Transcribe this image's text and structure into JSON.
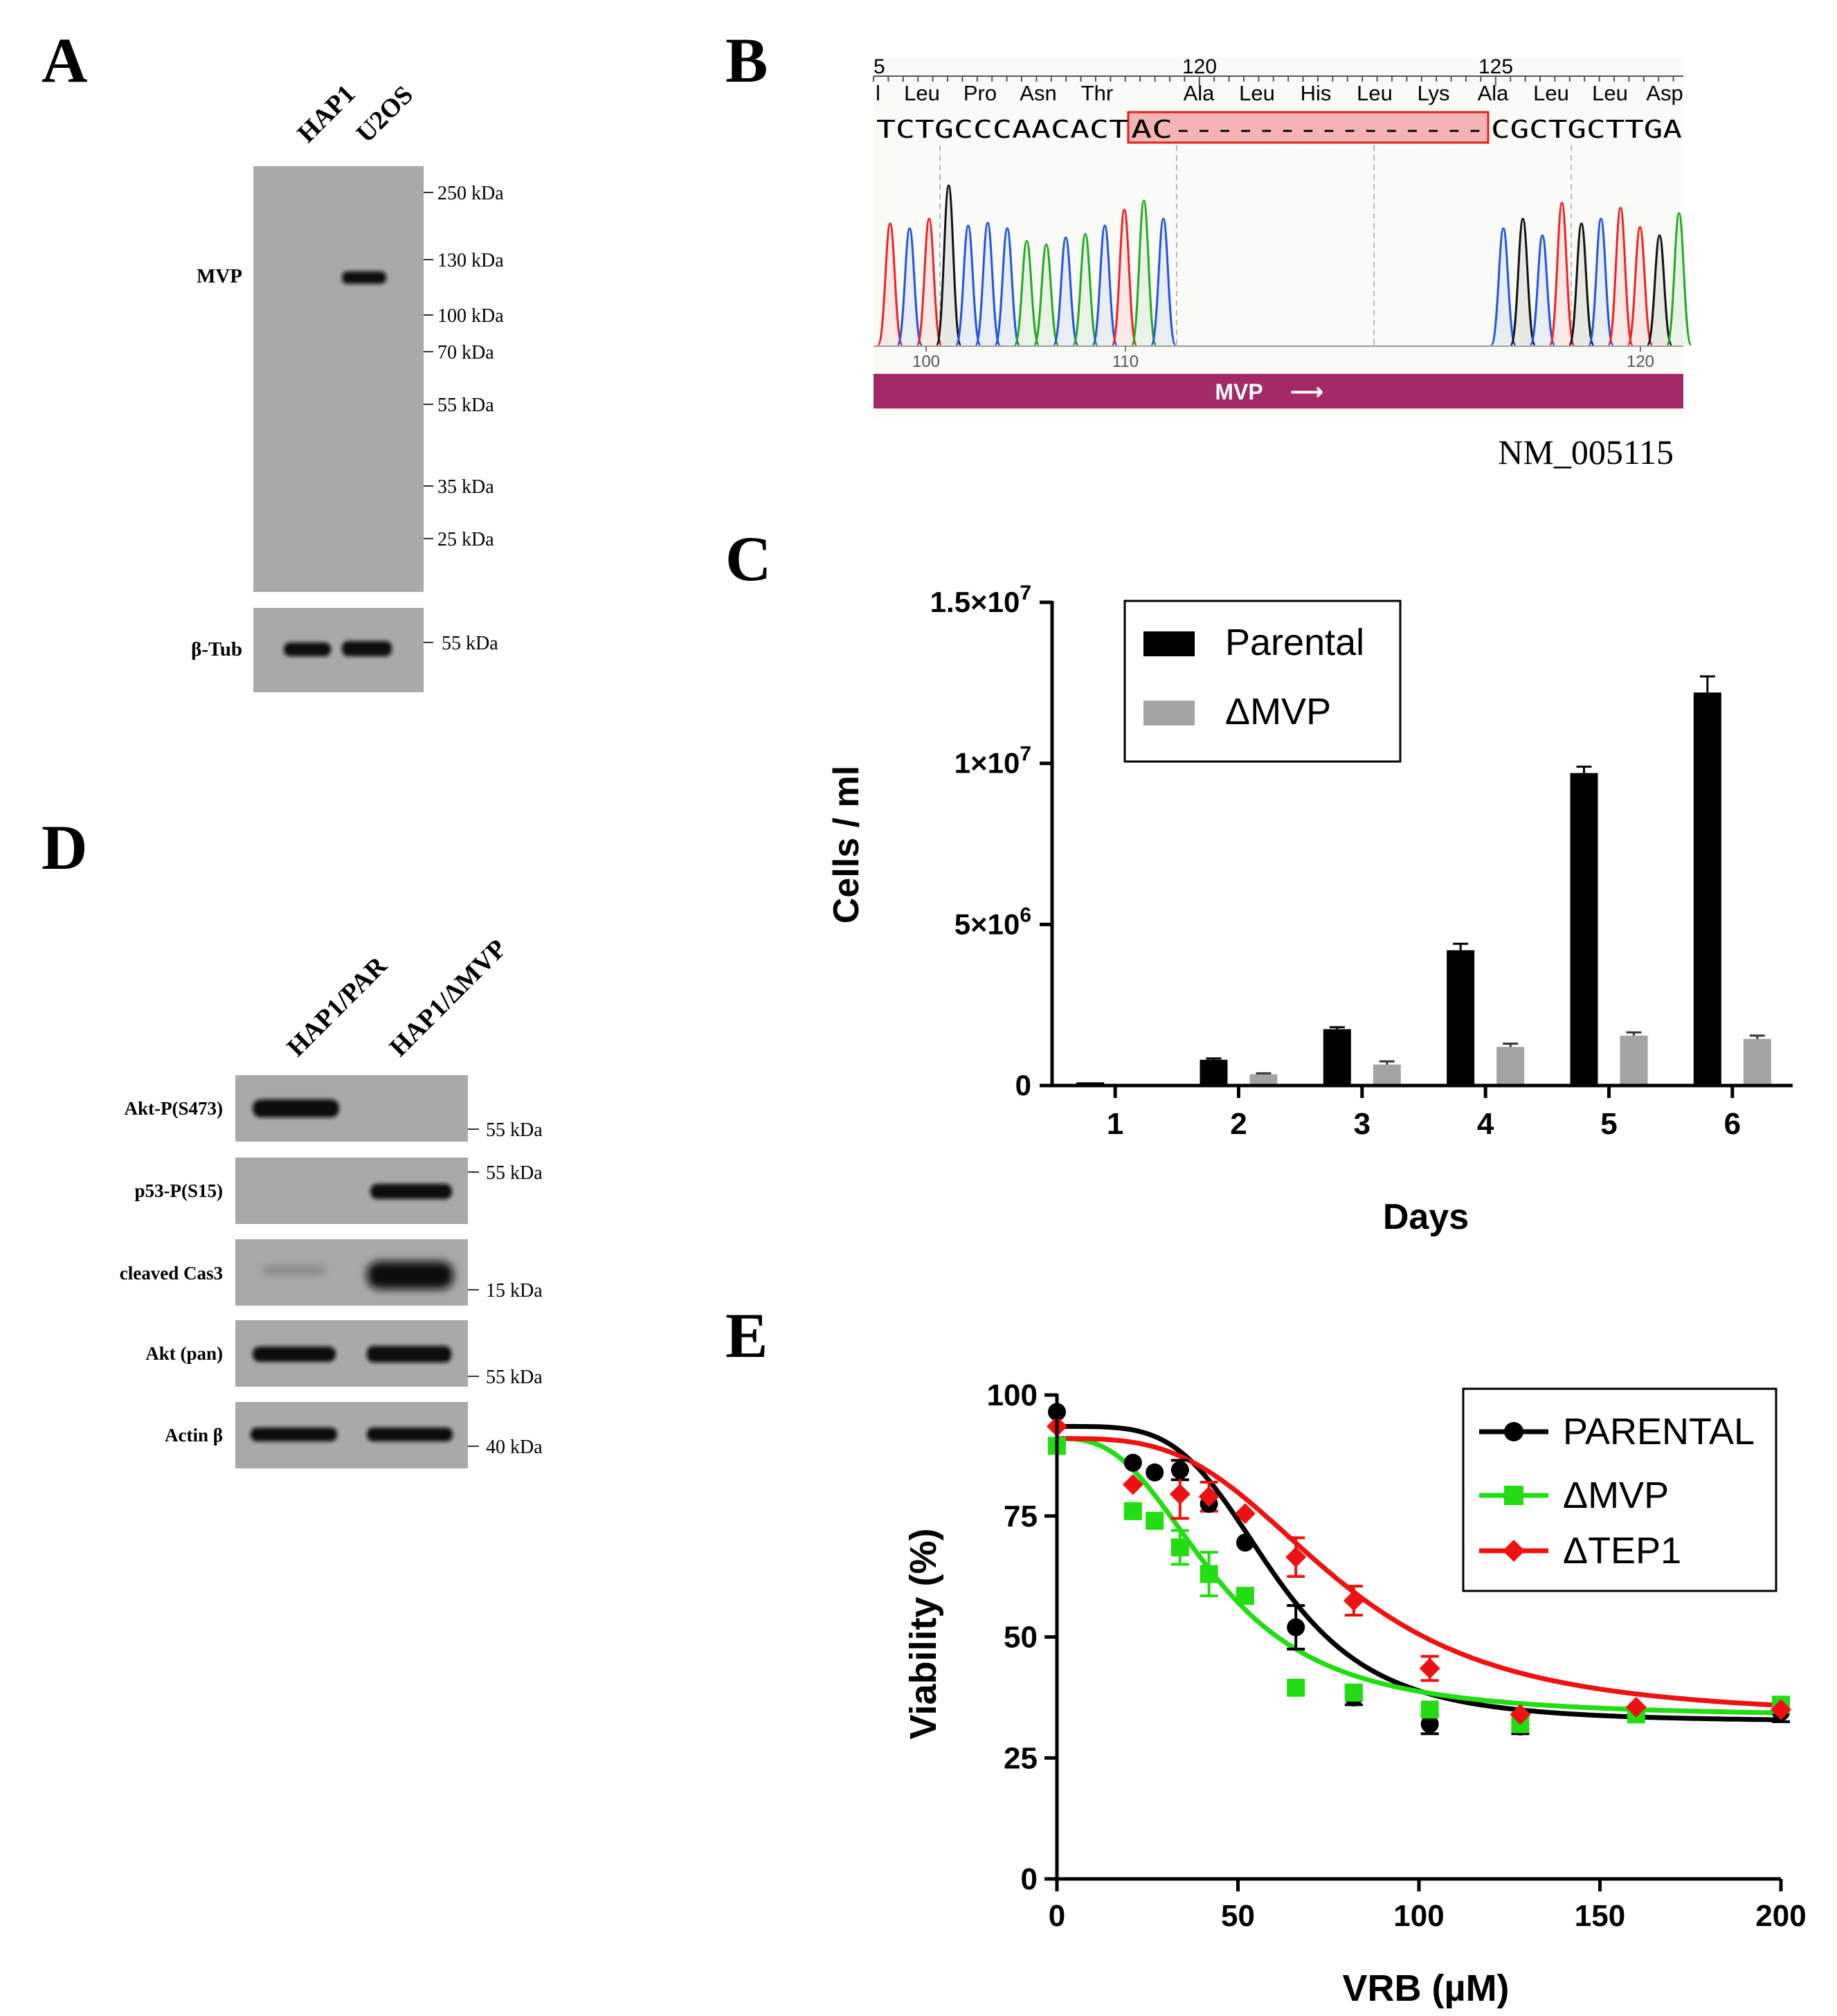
{
  "colors": {
    "blot_bg": "#a9a9a9",
    "parental": "#000000",
    "dmvp": "#a4a4a4",
    "green": "#22dd11",
    "red": "#ee1111",
    "gene_bar": "#a32a66",
    "deletion_fill": "#f6b3b3",
    "deletion_border": "#e02020"
  },
  "panels": {
    "A": "A",
    "B": "B",
    "C": "C",
    "D": "D",
    "E": "E"
  },
  "panel_a": {
    "lanes": [
      "HAP1",
      "U2OS"
    ],
    "main_label": "MVP",
    "loading_label": "β-Tub",
    "markers": [
      "250 kDa",
      "130 kDa",
      "100 kDa",
      "70 kDa",
      "55 kDa",
      "35 kDa",
      "25 kDa"
    ],
    "loading_marker": "55 kDa"
  },
  "panel_b": {
    "ruler_numbers": [
      "5",
      "120",
      "125"
    ],
    "amino_acids": [
      "l",
      "Leu",
      "Pro",
      "Asn",
      "Thr",
      "Ala",
      "Leu",
      "His",
      "Leu",
      "Lys",
      "Ala",
      "Leu",
      "Leu",
      "Asp"
    ],
    "seq_left": "TCTGCCCAACACT",
    "seq_deleted": "AC---------------",
    "seq_right": "CGCTGCTTGA",
    "trace_ticks": [
      "100",
      "110",
      "120"
    ],
    "gene_name": "MVP",
    "gene_arrow": "⟶",
    "accession": "NM_005115"
  },
  "panel_d": {
    "lanes": [
      "HAP1/PAR",
      "HAP1/ΔMVP"
    ],
    "rows": [
      {
        "label": "Akt-P(S473)",
        "marker": "55 kDa"
      },
      {
        "label": "p53-P(S15)",
        "marker": "55 kDa"
      },
      {
        "label": "cleaved Cas3",
        "marker": "15 kDa"
      },
      {
        "label": "Akt (pan)",
        "marker": "55 kDa"
      },
      {
        "label": "Actin β",
        "marker": "40 kDa"
      }
    ]
  },
  "chart_data": [
    {
      "panel": "C",
      "type": "bar",
      "title": "",
      "xlabel": "Days",
      "ylabel": "Cells / ml",
      "categories": [
        "1",
        "2",
        "3",
        "4",
        "5",
        "6"
      ],
      "ylim": [
        0,
        15000000
      ],
      "yticks": [
        {
          "value": 0,
          "label": "0",
          "exp": ""
        },
        {
          "value": 5000000,
          "label": "5×10",
          "exp": "6"
        },
        {
          "value": 10000000,
          "label": "1×10",
          "exp": "7"
        },
        {
          "value": 15000000,
          "label": "1.5×10",
          "exp": "7"
        }
      ],
      "legend": "top-left",
      "series": [
        {
          "name": "Parental",
          "color": "#000000",
          "values": [
            100000,
            800000,
            1750000,
            4200000,
            9700000,
            12200000
          ],
          "errors": [
            0,
            40000,
            60000,
            200000,
            200000,
            500000
          ]
        },
        {
          "name": "ΔMVP",
          "color": "#a4a4a4",
          "values": [
            0,
            350000,
            650000,
            1200000,
            1550000,
            1450000
          ],
          "errors": [
            0,
            30000,
            100000,
            100000,
            100000,
            100000
          ]
        }
      ]
    },
    {
      "panel": "E",
      "type": "scatter",
      "title": "",
      "xlabel": "VRB (µM)",
      "ylabel": "Viability (%)",
      "xlim": [
        0,
        200
      ],
      "ylim": [
        0,
        100
      ],
      "xticks": [
        0,
        50,
        100,
        150,
        200
      ],
      "yticks": [
        0,
        25,
        50,
        75,
        100
      ],
      "legend": "top-right",
      "series": [
        {
          "name": "PARENTAL",
          "color": "#000000",
          "marker": "circle",
          "x": [
            0,
            21,
            27,
            34,
            42,
            52,
            66,
            82,
            103,
            128,
            160,
            200
          ],
          "y": [
            96.5,
            86,
            84,
            84.5,
            77.5,
            69.5,
            52,
            37.5,
            32,
            31.5,
            35,
            34.5
          ],
          "err": [
            0,
            0,
            0,
            2,
            0,
            0,
            4.5,
            1.5,
            2,
            1.5,
            0,
            2
          ],
          "fit": {
            "top": 93.5,
            "bottom": 32.5,
            "ic50": 60,
            "hill": 4.2
          }
        },
        {
          "name": "ΔMVP",
          "color": "#22dd11",
          "marker": "square",
          "x": [
            0,
            21,
            27,
            34,
            42,
            52,
            66,
            82,
            103,
            128,
            160,
            200
          ],
          "y": [
            89.5,
            76,
            74,
            68.5,
            63,
            58.5,
            39.5,
            38.5,
            35,
            32,
            34,
            36
          ],
          "err": [
            0,
            0,
            0,
            3.5,
            4.5,
            0,
            0,
            1.5,
            0,
            1,
            0,
            0
          ],
          "fit": {
            "top": 91,
            "bottom": 33.5,
            "ic50": 44,
            "hill": 2.8
          }
        },
        {
          "name": "ΔTEP1",
          "color": "#ee1111",
          "marker": "diamond",
          "x": [
            0,
            21,
            34,
            42,
            52,
            66,
            82,
            103,
            128,
            160,
            200
          ],
          "y": [
            93.5,
            81.5,
            79.5,
            79,
            75.5,
            66.5,
            57.5,
            43.5,
            34,
            35.5,
            35
          ],
          "err": [
            0,
            0,
            5,
            3,
            0,
            4,
            3,
            2.5,
            0,
            0,
            0
          ],
          "fit": {
            "top": 91,
            "bottom": 33.5,
            "ic50": 77,
            "hill": 3.3
          }
        }
      ]
    }
  ]
}
